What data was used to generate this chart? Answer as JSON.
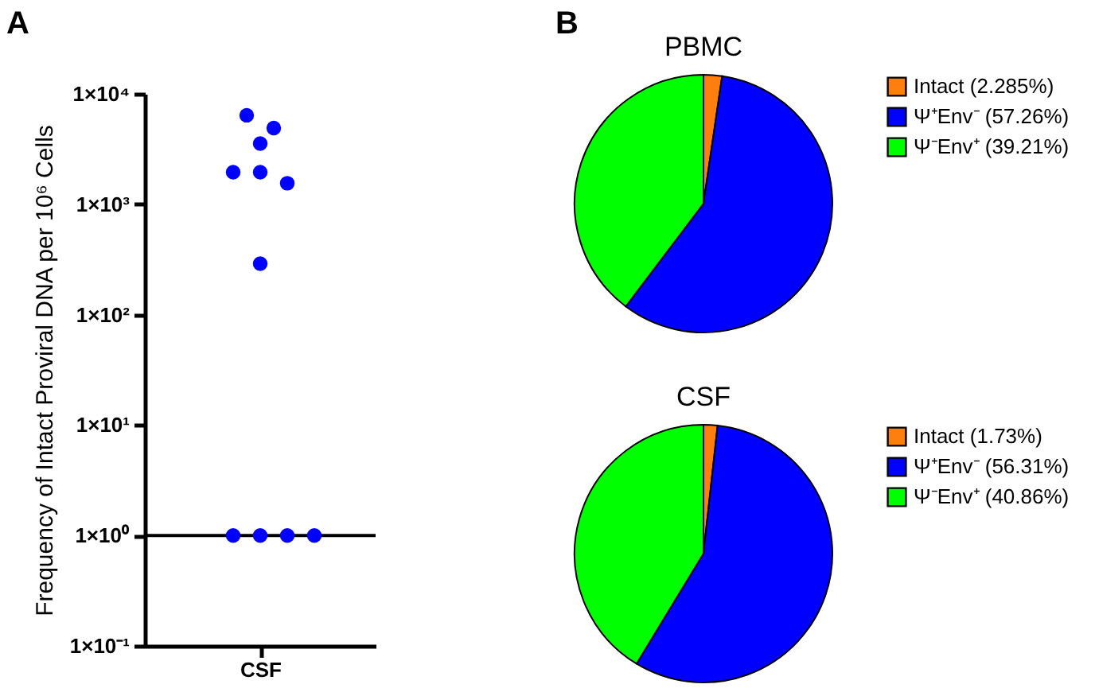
{
  "chart_data": [
    {
      "type": "scatter",
      "annotations": [
        "A"
      ],
      "ylabel": "Frequency of Intact Proviral DNA per 10⁶ Cells",
      "categories": [
        "CSF"
      ],
      "log": true,
      "marker": "circle",
      "series": [
        {
          "color": "#0000ff",
          "x": [
            "CSF",
            "CSF",
            "CSF",
            "CSF",
            "CSF",
            "CSF",
            "CSF",
            "CSF",
            "CSF",
            "CSF",
            "CSF"
          ],
          "values": [
            3550,
            290,
            4900,
            1950,
            6400,
            1550,
            1950,
            1,
            1,
            1,
            1
          ]
        }
      ],
      "ylim": [
        0.1,
        10000
      ],
      "yticks": [
        {
          "value": 0.1,
          "label": "1×10⁻¹"
        },
        {
          "value": 1,
          "label": "1×10⁰"
        },
        {
          "value": 10,
          "label": "1×10¹"
        },
        {
          "value": 100,
          "label": "1×10²"
        },
        {
          "value": 1000,
          "label": "1×10³"
        },
        {
          "value": 10000,
          "label": "1×10⁴"
        }
      ],
      "ref_lines": [
        {
          "axis": "y",
          "value": 1,
          "color": "#000000"
        }
      ]
    },
    {
      "type": "pie",
      "title": "PBMC",
      "annotations": [
        "B"
      ],
      "legend": "right",
      "categories": [
        "Intact (2.285%)",
        "Ψ⁺Env⁻ (57.26%)",
        "Ψ⁻Env⁺ (39.21%)"
      ],
      "values": [
        2.285,
        57.26,
        39.21
      ],
      "colors": [
        "#ff7f0e",
        "#0000ff",
        "#00ff00"
      ]
    },
    {
      "type": "pie",
      "title": "CSF",
      "legend": "right",
      "categories": [
        "Intact (1.73%)",
        "Ψ⁺Env⁻ (56.31%)",
        "Ψ⁻Env⁺ (40.86%)"
      ],
      "values": [
        1.73,
        56.31,
        40.86
      ],
      "colors": [
        "#ff7f0e",
        "#0000ff",
        "#00ff00"
      ]
    }
  ]
}
